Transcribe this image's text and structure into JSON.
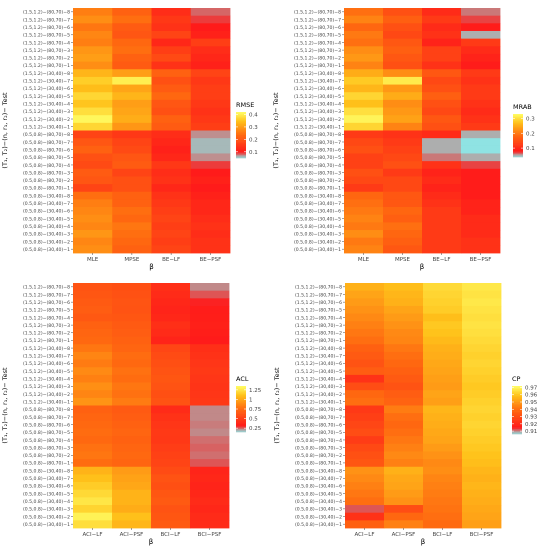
{
  "chart_data": [
    {
      "type": "heatmap",
      "xlabel": "β",
      "ylabel": "(T₁, T₂)−(n, r₁, r₂)− Test",
      "columns": [
        "MLE",
        "MPSE",
        "BE−LF",
        "BE−PSF"
      ],
      "rows": [
        "(1.5,1.2)−(80,70)−8",
        "(1.5,1.2)−(80,70)−7",
        "(1.5,1.2)−(80,70)−6",
        "(1.5,1.2)−(80,70)−5",
        "(1.5,1.2)−(80,70)−4",
        "(1.5,1.2)−(80,70)−3",
        "(1.5,1.2)−(80,70)−2",
        "(1.5,1.2)−(80,70)−1",
        "(1.5,1.2)−(30,40)−8",
        "(1.5,1.2)−(30,40)−7",
        "(1.5,1.2)−(30,40)−6",
        "(1.5,1.2)−(30,40)−5",
        "(1.5,1.2)−(30,40)−4",
        "(1.5,1.2)−(30,40)−3",
        "(1.5,1.2)−(30,40)−2",
        "(1.5,1.2)−(30,40)−1",
        "(0.5,0.8)−(80,70)−8",
        "(0.5,0.8)−(80,70)−7",
        "(0.5,0.8)−(80,70)−6",
        "(0.5,0.8)−(80,70)−5",
        "(0.5,0.8)−(80,70)−4",
        "(0.5,0.8)−(80,70)−3",
        "(0.5,0.8)−(80,70)−2",
        "(0.5,0.8)−(80,70)−1",
        "(0.5,0.8)−(30,40)−8",
        "(0.5,0.8)−(30,40)−7",
        "(0.5,0.8)−(30,40)−6",
        "(0.5,0.8)−(30,40)−5",
        "(0.5,0.8)−(30,40)−4",
        "(0.5,0.8)−(30,40)−3",
        "(0.5,0.8)−(30,40)−2",
        "(0.5,0.8)−(30,40)−1"
      ],
      "legend": {
        "title": "RMSE",
        "ticks": [
          0.1,
          0.2,
          0.3,
          0.4
        ],
        "range": [
          0.05,
          0.42
        ]
      },
      "values": [
        [
          0.26,
          0.22,
          0.13,
          0.08
        ],
        [
          0.28,
          0.24,
          0.15,
          0.09
        ],
        [
          0.25,
          0.21,
          0.14,
          0.1
        ],
        [
          0.27,
          0.2,
          0.17,
          0.11
        ],
        [
          0.26,
          0.23,
          0.12,
          0.16
        ],
        [
          0.29,
          0.24,
          0.16,
          0.13
        ],
        [
          0.3,
          0.22,
          0.18,
          0.12
        ],
        [
          0.28,
          0.21,
          0.14,
          0.11
        ],
        [
          0.33,
          0.3,
          0.22,
          0.17
        ],
        [
          0.36,
          0.4,
          0.19,
          0.15
        ],
        [
          0.34,
          0.31,
          0.21,
          0.16
        ],
        [
          0.37,
          0.33,
          0.23,
          0.16
        ],
        [
          0.35,
          0.3,
          0.2,
          0.15
        ],
        [
          0.38,
          0.31,
          0.19,
          0.14
        ],
        [
          0.41,
          0.32,
          0.22,
          0.15
        ],
        [
          0.37,
          0.29,
          0.21,
          0.16
        ],
        [
          0.17,
          0.15,
          0.13,
          0.07
        ],
        [
          0.2,
          0.17,
          0.12,
          0.06
        ],
        [
          0.22,
          0.18,
          0.11,
          0.06
        ],
        [
          0.19,
          0.2,
          0.12,
          0.07
        ],
        [
          0.18,
          0.21,
          0.15,
          0.09
        ],
        [
          0.21,
          0.17,
          0.13,
          0.1
        ],
        [
          0.2,
          0.19,
          0.14,
          0.11
        ],
        [
          0.17,
          0.19,
          0.12,
          0.1
        ],
        [
          0.24,
          0.22,
          0.14,
          0.11
        ],
        [
          0.26,
          0.22,
          0.15,
          0.12
        ],
        [
          0.27,
          0.24,
          0.16,
          0.12
        ],
        [
          0.28,
          0.23,
          0.17,
          0.13
        ],
        [
          0.27,
          0.25,
          0.16,
          0.14
        ],
        [
          0.29,
          0.24,
          0.17,
          0.13
        ],
        [
          0.27,
          0.23,
          0.16,
          0.14
        ],
        [
          0.28,
          0.22,
          0.17,
          0.14
        ]
      ]
    },
    {
      "type": "heatmap",
      "xlabel": "β",
      "ylabel": "(T₁, T₂)−(n, r₁, r₂)− Test",
      "columns": [
        "MLE",
        "MPSE",
        "BE−LF",
        "BE−PSF"
      ],
      "rows": [
        "(1.5,1.2)−(80,70)−8",
        "(1.5,1.2)−(80,70)−7",
        "(1.5,1.2)−(80,70)−6",
        "(1.5,1.2)−(80,70)−5",
        "(1.5,1.2)−(80,70)−4",
        "(1.5,1.2)−(80,70)−3",
        "(1.5,1.2)−(80,70)−2",
        "(1.5,1.2)−(80,70)−1",
        "(1.5,1.2)−(30,40)−8",
        "(1.5,1.2)−(30,40)−7",
        "(1.5,1.2)−(30,40)−6",
        "(1.5,1.2)−(30,40)−5",
        "(1.5,1.2)−(30,40)−4",
        "(1.5,1.2)−(30,40)−3",
        "(1.5,1.2)−(30,40)−2",
        "(1.5,1.2)−(30,40)−1",
        "(0.5,0.8)−(80,70)−8",
        "(0.5,0.8)−(80,70)−7",
        "(0.5,0.8)−(80,70)−6",
        "(0.5,0.8)−(80,70)−5",
        "(0.5,0.8)−(80,70)−4",
        "(0.5,0.8)−(80,70)−3",
        "(0.5,0.8)−(80,70)−2",
        "(0.5,0.8)−(80,70)−1",
        "(0.5,0.8)−(30,40)−8",
        "(0.5,0.8)−(30,40)−7",
        "(0.5,0.8)−(30,40)−6",
        "(0.5,0.8)−(30,40)−5",
        "(0.5,0.8)−(30,40)−4",
        "(0.5,0.8)−(30,40)−3",
        "(0.5,0.8)−(30,40)−2",
        "(0.5,0.8)−(30,40)−1"
      ],
      "legend": {
        "title": "MRAB",
        "ticks": [
          0.1,
          0.2,
          0.3
        ],
        "range": [
          0.04,
          0.33
        ]
      },
      "values": [
        [
          0.19,
          0.15,
          0.1,
          0.06
        ],
        [
          0.21,
          0.17,
          0.12,
          0.07
        ],
        [
          0.18,
          0.15,
          0.1,
          0.08
        ],
        [
          0.2,
          0.14,
          0.11,
          0.05
        ],
        [
          0.19,
          0.16,
          0.09,
          0.12
        ],
        [
          0.22,
          0.17,
          0.13,
          0.1
        ],
        [
          0.23,
          0.16,
          0.13,
          0.09
        ],
        [
          0.21,
          0.15,
          0.11,
          0.08
        ],
        [
          0.25,
          0.22,
          0.16,
          0.12
        ],
        [
          0.28,
          0.31,
          0.14,
          0.11
        ],
        [
          0.26,
          0.23,
          0.15,
          0.12
        ],
        [
          0.29,
          0.25,
          0.17,
          0.12
        ],
        [
          0.27,
          0.22,
          0.15,
          0.11
        ],
        [
          0.3,
          0.23,
          0.14,
          0.1
        ],
        [
          0.32,
          0.24,
          0.16,
          0.11
        ],
        [
          0.29,
          0.21,
          0.15,
          0.12
        ],
        [
          0.12,
          0.11,
          0.1,
          0.05
        ],
        [
          0.14,
          0.12,
          0.05,
          0.04
        ],
        [
          0.15,
          0.13,
          0.05,
          0.04
        ],
        [
          0.13,
          0.14,
          0.06,
          0.05
        ],
        [
          0.13,
          0.15,
          0.11,
          0.07
        ],
        [
          0.15,
          0.12,
          0.09,
          0.08
        ],
        [
          0.14,
          0.14,
          0.1,
          0.08
        ],
        [
          0.12,
          0.14,
          0.09,
          0.08
        ],
        [
          0.18,
          0.16,
          0.1,
          0.08
        ],
        [
          0.19,
          0.16,
          0.11,
          0.09
        ],
        [
          0.2,
          0.18,
          0.12,
          0.09
        ],
        [
          0.21,
          0.17,
          0.12,
          0.1
        ],
        [
          0.2,
          0.19,
          0.12,
          0.1
        ],
        [
          0.22,
          0.18,
          0.12,
          0.1
        ],
        [
          0.2,
          0.17,
          0.12,
          0.11
        ],
        [
          0.21,
          0.16,
          0.12,
          0.11
        ]
      ]
    },
    {
      "type": "heatmap",
      "xlabel": "β",
      "ylabel": "(T₁, T₂)−(n, r₁, r₂)− Test",
      "columns": [
        "ACI−LF",
        "ACI−PSF",
        "BCI−LF",
        "BCI−PSF"
      ],
      "rows": [
        "(1.5,1.2)−(80,70)−8",
        "(1.5,1.2)−(80,70)−7",
        "(1.5,1.2)−(80,70)−6",
        "(1.5,1.2)−(80,70)−5",
        "(1.5,1.2)−(80,70)−4",
        "(1.5,1.2)−(80,70)−3",
        "(1.5,1.2)−(80,70)−2",
        "(1.5,1.2)−(80,70)−1",
        "(1.5,1.2)−(30,40)−8",
        "(1.5,1.2)−(30,40)−7",
        "(1.5,1.2)−(30,40)−6",
        "(1.5,1.2)−(30,40)−5",
        "(1.5,1.2)−(30,40)−4",
        "(1.5,1.2)−(30,40)−3",
        "(1.5,1.2)−(30,40)−2",
        "(1.5,1.2)−(30,40)−1",
        "(0.5,0.8)−(80,70)−8",
        "(0.5,0.8)−(80,70)−7",
        "(0.5,0.8)−(80,70)−6",
        "(0.5,0.8)−(80,70)−5",
        "(0.5,0.8)−(80,70)−4",
        "(0.5,0.8)−(80,70)−3",
        "(0.5,0.8)−(80,70)−2",
        "(0.5,0.8)−(80,70)−1",
        "(0.5,0.8)−(30,40)−8",
        "(0.5,0.8)−(30,40)−7",
        "(0.5,0.8)−(30,40)−6",
        "(0.5,0.8)−(30,40)−5",
        "(0.5,0.8)−(30,40)−4",
        "(0.5,0.8)−(30,40)−3",
        "(0.5,0.8)−(30,40)−2",
        "(0.5,0.8)−(30,40)−1"
      ],
      "legend": {
        "title": "ACL",
        "ticks": [
          0.25,
          0.5,
          0.75,
          1.0,
          1.25
        ],
        "range": [
          0.15,
          1.35
        ]
      },
      "values": [
        [
          0.62,
          0.6,
          0.42,
          0.22
        ],
        [
          0.64,
          0.61,
          0.4,
          0.26
        ],
        [
          0.66,
          0.63,
          0.38,
          0.3
        ],
        [
          0.68,
          0.62,
          0.36,
          0.32
        ],
        [
          0.65,
          0.64,
          0.38,
          0.33
        ],
        [
          0.7,
          0.66,
          0.42,
          0.34
        ],
        [
          0.72,
          0.68,
          0.4,
          0.33
        ],
        [
          0.74,
          0.7,
          0.36,
          0.31
        ],
        [
          0.8,
          0.72,
          0.55,
          0.42
        ],
        [
          0.86,
          0.76,
          0.58,
          0.44
        ],
        [
          0.82,
          0.74,
          0.6,
          0.46
        ],
        [
          0.88,
          0.78,
          0.62,
          0.48
        ],
        [
          0.84,
          0.76,
          0.64,
          0.46
        ],
        [
          0.9,
          0.8,
          0.62,
          0.45
        ],
        [
          0.86,
          0.78,
          0.6,
          0.46
        ],
        [
          0.92,
          0.82,
          0.62,
          0.47
        ],
        [
          0.7,
          0.66,
          0.4,
          0.22
        ],
        [
          0.72,
          0.68,
          0.44,
          0.22
        ],
        [
          0.74,
          0.7,
          0.46,
          0.23
        ],
        [
          0.76,
          0.72,
          0.48,
          0.22
        ],
        [
          0.74,
          0.7,
          0.47,
          0.24
        ],
        [
          0.78,
          0.72,
          0.5,
          0.25
        ],
        [
          0.8,
          0.74,
          0.52,
          0.24
        ],
        [
          0.76,
          0.72,
          0.54,
          0.26
        ],
        [
          1.05,
          0.95,
          0.58,
          0.36
        ],
        [
          1.1,
          0.98,
          0.62,
          0.38
        ],
        [
          1.15,
          1.0,
          0.6,
          0.36
        ],
        [
          1.2,
          1.05,
          0.64,
          0.38
        ],
        [
          1.25,
          1.05,
          0.66,
          0.4
        ],
        [
          1.18,
          1.02,
          0.62,
          0.38
        ],
        [
          1.3,
          1.1,
          0.64,
          0.4
        ],
        [
          1.22,
          1.06,
          0.66,
          0.4
        ]
      ]
    },
    {
      "type": "heatmap",
      "xlabel": "β",
      "ylabel": "(T₁, T₂)−(n, r₁, r₂)− Test",
      "columns": [
        "ACI−LF",
        "ACI−PSF",
        "BCI−LF",
        "BCI−PSF"
      ],
      "rows": [
        "(1.5,1.2)−(80,70)−8",
        "(1.5,1.2)−(80,70)−7",
        "(1.5,1.2)−(80,70)−6",
        "(1.5,1.2)−(80,70)−5",
        "(1.5,1.2)−(80,70)−4",
        "(1.5,1.2)−(80,70)−3",
        "(1.5,1.2)−(80,70)−2",
        "(1.5,1.2)−(80,70)−1",
        "(1.5,1.2)−(30,40)−8",
        "(1.5,1.2)−(30,40)−7",
        "(1.5,1.2)−(30,40)−6",
        "(1.5,1.2)−(30,40)−5",
        "(1.5,1.2)−(30,40)−4",
        "(1.5,1.2)−(30,40)−3",
        "(1.5,1.2)−(30,40)−2",
        "(1.5,1.2)−(30,40)−1",
        "(0.5,0.8)−(80,70)−8",
        "(0.5,0.8)−(80,70)−7",
        "(0.5,0.8)−(80,70)−6",
        "(0.5,0.8)−(80,70)−5",
        "(0.5,0.8)−(80,70)−4",
        "(0.5,0.8)−(80,70)−3",
        "(0.5,0.8)−(80,70)−2",
        "(0.5,0.8)−(80,70)−1",
        "(0.5,0.8)−(30,40)−8",
        "(0.5,0.8)−(30,40)−7",
        "(0.5,0.8)−(30,40)−6",
        "(0.5,0.8)−(30,40)−5",
        "(0.5,0.8)−(30,40)−4",
        "(0.5,0.8)−(30,40)−3",
        "(0.5,0.8)−(30,40)−2",
        "(0.5,0.8)−(30,40)−1"
      ],
      "legend": {
        "title": "CP",
        "ticks": [
          0.91,
          0.92,
          0.93,
          0.94,
          0.95,
          0.96,
          0.97
        ],
        "range": [
          0.906,
          0.972
        ]
      },
      "values": [
        [
          0.955,
          0.958,
          0.964,
          0.967
        ],
        [
          0.952,
          0.956,
          0.963,
          0.966
        ],
        [
          0.95,
          0.955,
          0.962,
          0.967
        ],
        [
          0.948,
          0.952,
          0.961,
          0.966
        ],
        [
          0.946,
          0.95,
          0.958,
          0.965
        ],
        [
          0.944,
          0.948,
          0.96,
          0.966
        ],
        [
          0.942,
          0.946,
          0.959,
          0.965
        ],
        [
          0.94,
          0.945,
          0.957,
          0.964
        ],
        [
          0.936,
          0.942,
          0.955,
          0.963
        ],
        [
          0.934,
          0.94,
          0.954,
          0.962
        ],
        [
          0.932,
          0.938,
          0.953,
          0.963
        ],
        [
          0.935,
          0.936,
          0.952,
          0.962
        ],
        [
          0.922,
          0.934,
          0.951,
          0.961
        ],
        [
          0.93,
          0.932,
          0.95,
          0.96
        ],
        [
          0.938,
          0.935,
          0.952,
          0.961
        ],
        [
          0.94,
          0.937,
          0.951,
          0.962
        ],
        [
          0.924,
          0.943,
          0.956,
          0.963
        ],
        [
          0.926,
          0.94,
          0.955,
          0.962
        ],
        [
          0.928,
          0.938,
          0.954,
          0.963
        ],
        [
          0.93,
          0.94,
          0.953,
          0.962
        ],
        [
          0.925,
          0.942,
          0.952,
          0.961
        ],
        [
          0.929,
          0.944,
          0.95,
          0.96
        ],
        [
          0.931,
          0.946,
          0.948,
          0.959
        ],
        [
          0.933,
          0.944,
          0.946,
          0.958
        ],
        [
          0.948,
          0.955,
          0.947,
          0.956
        ],
        [
          0.946,
          0.953,
          0.945,
          0.955
        ],
        [
          0.944,
          0.952,
          0.944,
          0.956
        ],
        [
          0.942,
          0.95,
          0.943,
          0.955
        ],
        [
          0.94,
          0.948,
          0.942,
          0.954
        ],
        [
          0.912,
          0.93,
          0.941,
          0.953
        ],
        [
          0.922,
          0.938,
          0.94,
          0.952
        ],
        [
          0.936,
          0.944,
          0.939,
          0.951
        ]
      ]
    }
  ]
}
